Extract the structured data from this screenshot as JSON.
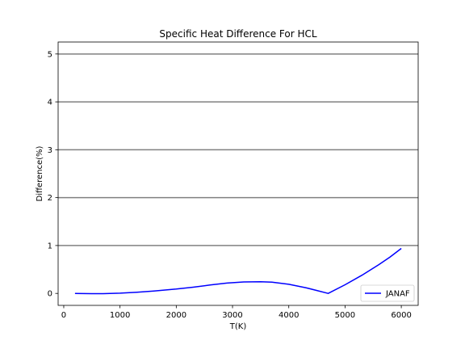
{
  "chart_data": {
    "type": "line",
    "title": "Specific Heat Difference For HCL",
    "xlabel": "T(K)",
    "ylabel": "Difference(%)",
    "xlim": [
      -100,
      6300
    ],
    "ylim": [
      -0.25,
      5.25
    ],
    "xticks": [
      0,
      1000,
      2000,
      3000,
      4000,
      5000,
      6000
    ],
    "yticks": [
      0,
      1,
      2,
      3,
      4,
      5
    ],
    "grid": "horizontal reference lines at y = 1, 2, 3, 4, 5",
    "grid_color": "#808080",
    "legend": {
      "position": "lower-right"
    },
    "series": [
      {
        "name": "JANAF",
        "color": "#0000ff",
        "x": [
          200,
          500,
          700,
          1000,
          1300,
          1600,
          2000,
          2300,
          2600,
          2900,
          3200,
          3500,
          3700,
          4000,
          4300,
          4500,
          4700,
          5000,
          5300,
          5600,
          5800,
          6000
        ],
        "y": [
          0.0,
          -0.005,
          -0.005,
          0.005,
          0.025,
          0.05,
          0.09,
          0.13,
          0.175,
          0.215,
          0.24,
          0.245,
          0.235,
          0.19,
          0.12,
          0.06,
          0.0,
          0.18,
          0.38,
          0.6,
          0.76,
          0.94
        ]
      }
    ]
  }
}
